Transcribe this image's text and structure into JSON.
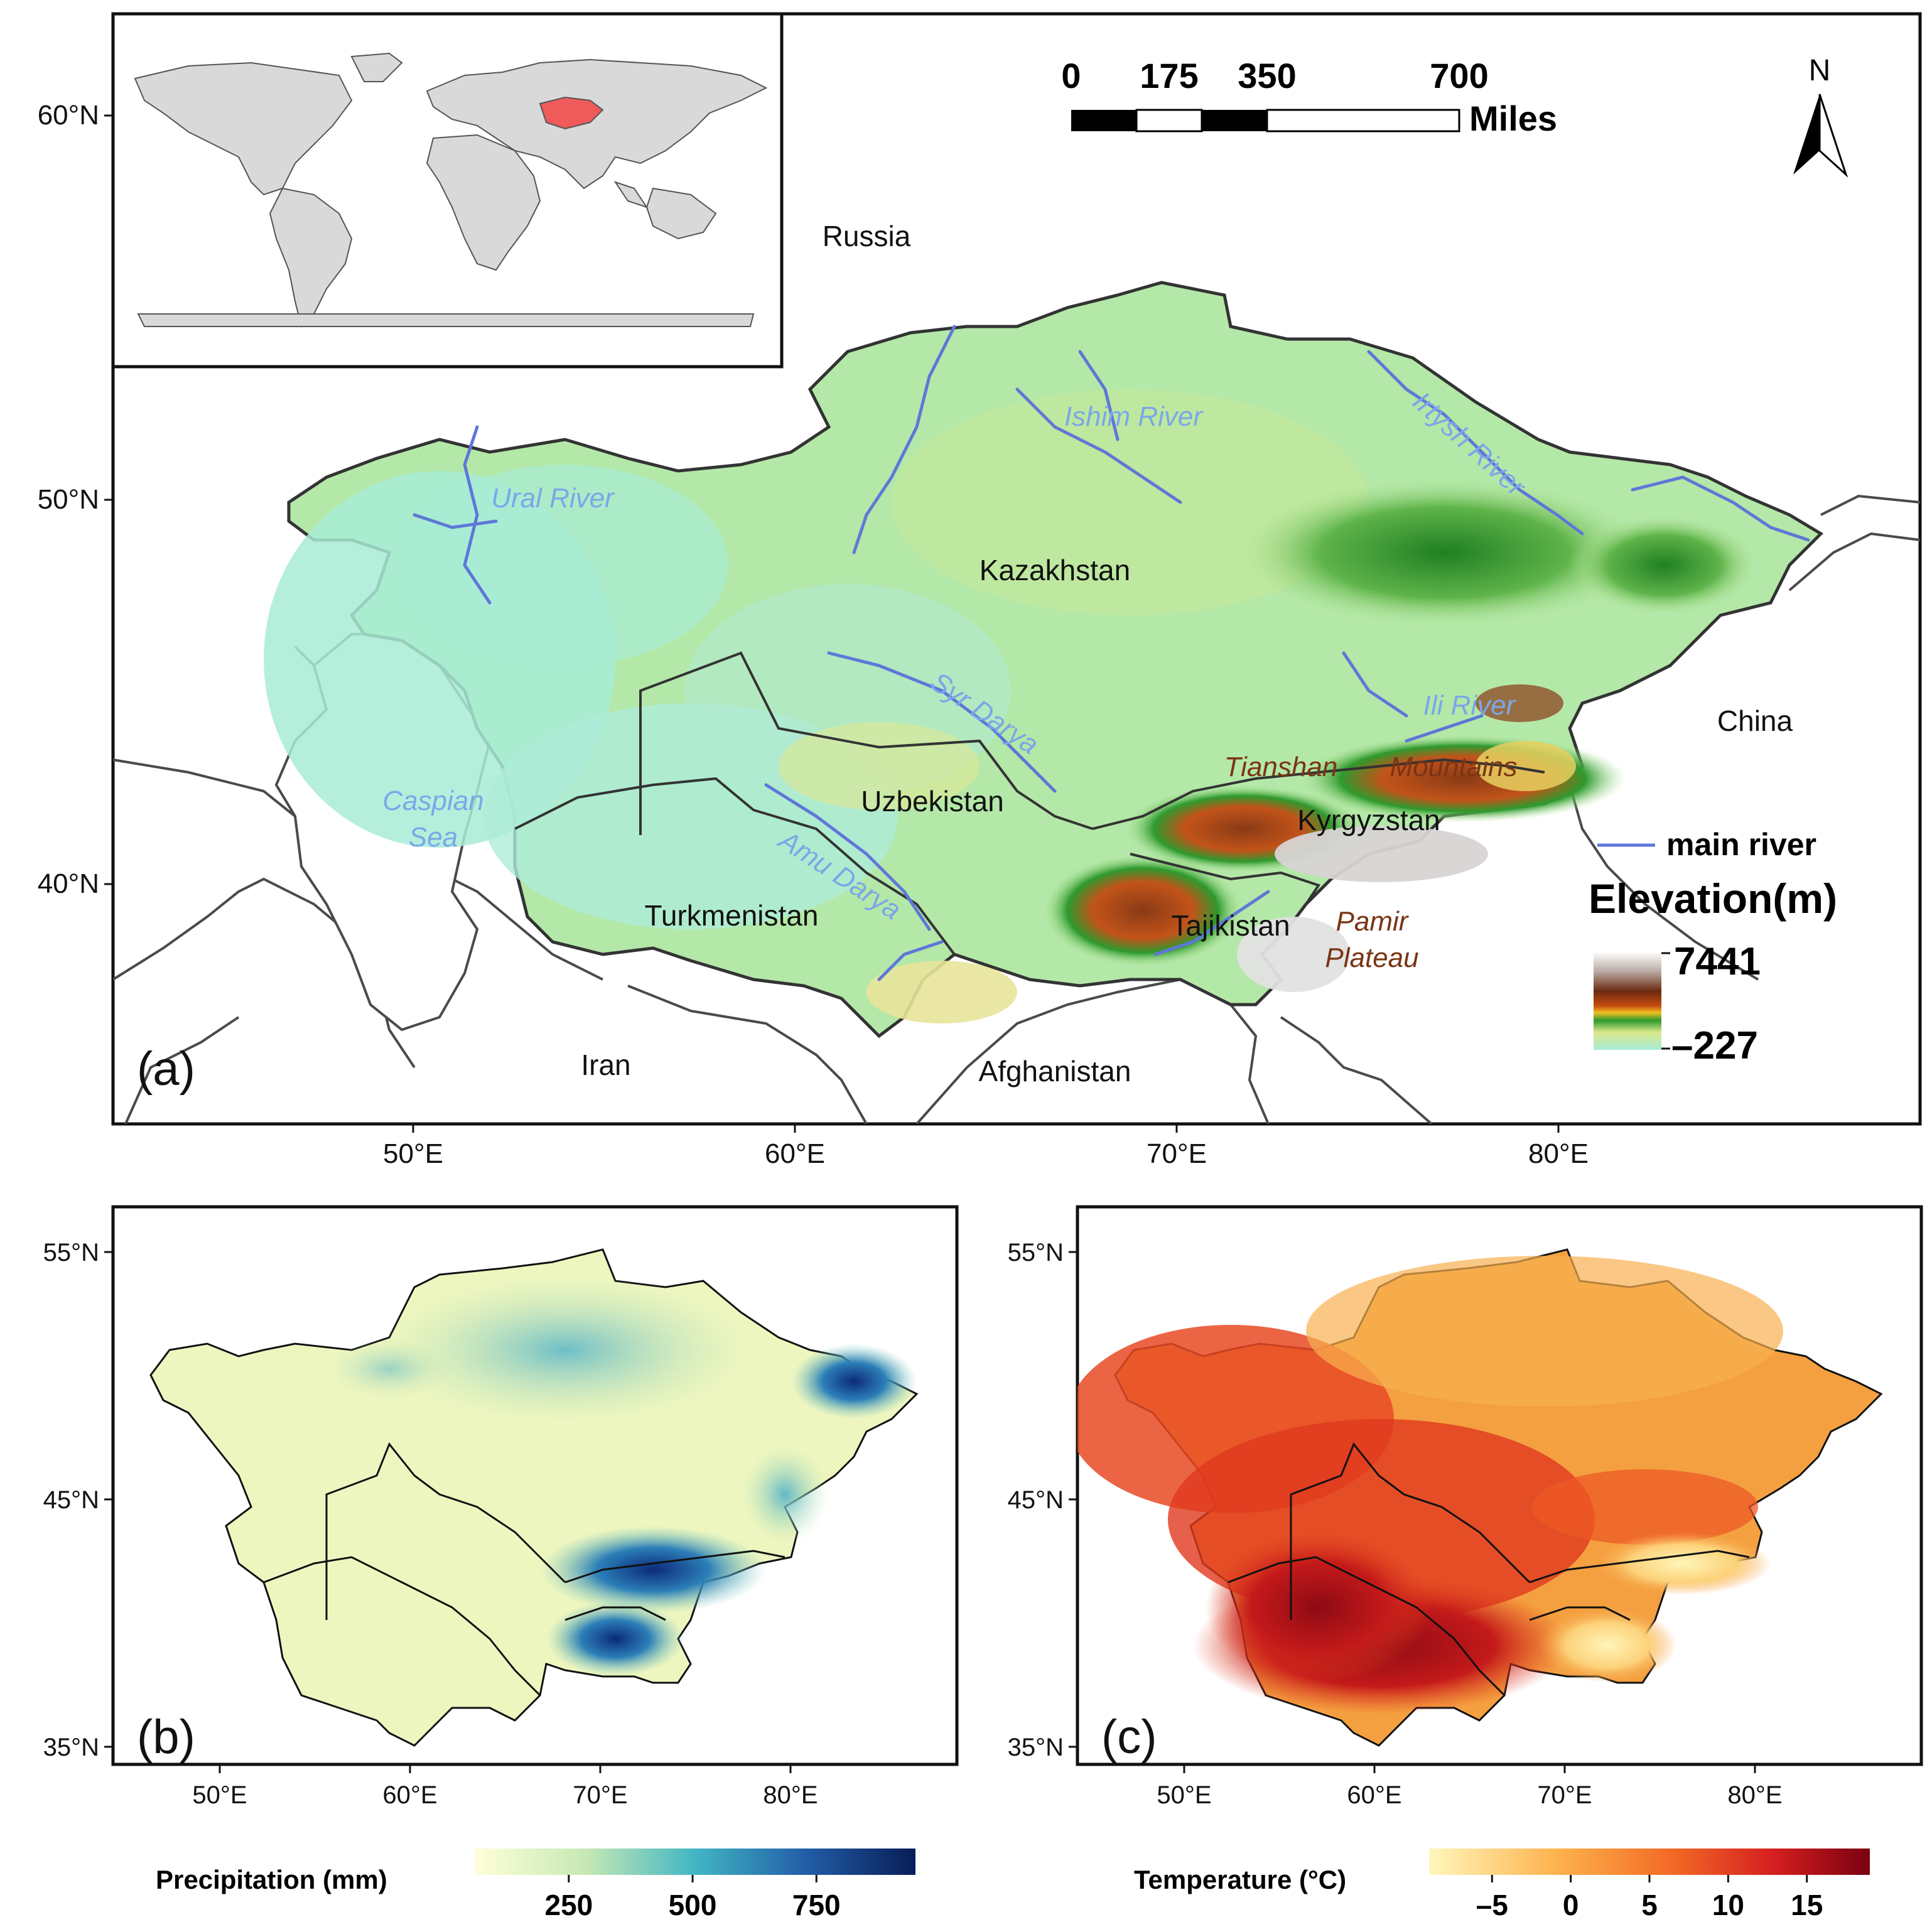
{
  "panel_a": {
    "label": "(a)",
    "lat_ticks": [
      {
        "text": "60°N",
        "lat": 60
      },
      {
        "text": "50°N",
        "lat": 50
      },
      {
        "text": "40°N",
        "lat": 40
      }
    ],
    "lon_ticks": [
      {
        "text": "50°E",
        "lon": 50
      },
      {
        "text": "60°E",
        "lon": 60
      },
      {
        "text": "70°E",
        "lon": 70
      },
      {
        "text": "80°E",
        "lon": 80
      }
    ],
    "scale_bar": {
      "ticks": [
        "0",
        "175",
        "350",
        "700"
      ],
      "unit": "Miles"
    },
    "north_arrow": "N",
    "countries": [
      "Russia",
      "Kazakhstan",
      "Uzbekistan",
      "Turkmenistan",
      "Kyrgyzstan",
      "Tajikistan",
      "China",
      "Iran",
      "Afghanistan"
    ],
    "rivers": [
      "Ishim River",
      "Irtysh River",
      "Ural River",
      "Syr Darya",
      "Ili River",
      "Amu Darya"
    ],
    "water": [
      "Caspian",
      "Sea"
    ],
    "mountains": [
      "Tianshan",
      "Mountains",
      "Pamir",
      "Plateau"
    ],
    "legend": {
      "river": "main river",
      "title": "Elevation(m)",
      "max": "7441",
      "min": "–227"
    },
    "colors": {
      "lowland": "#a8e8d4",
      "plain": "#b6e69a",
      "hill": "#e8e49a",
      "forest": "#2e9a2e",
      "mountain": "#8a3a16",
      "peak": "#e6e6e6",
      "river": "#5f77d8",
      "river_label": "#7ba7e8",
      "mountain_label": "#7a3414"
    }
  },
  "panel_b": {
    "label": "(b)",
    "lat_ticks": [
      {
        "text": "55°N",
        "lat": 55
      },
      {
        "text": "45°N",
        "lat": 45
      },
      {
        "text": "35°N",
        "lat": 35
      }
    ],
    "lon_ticks": [
      {
        "text": "50°E",
        "lon": 50
      },
      {
        "text": "60°E",
        "lon": 60
      },
      {
        "text": "70°E",
        "lon": 70
      },
      {
        "text": "80°E",
        "lon": 80
      }
    ],
    "legend": {
      "title": "Precipitation (mm)",
      "ticks": [
        "250",
        "500",
        "750"
      ],
      "tick_values": [
        250,
        500,
        750
      ],
      "range": [
        60,
        950
      ],
      "colors": [
        "#ffffd9",
        "#c7e9b4",
        "#41b6c4",
        "#225ea8",
        "#081d58"
      ]
    }
  },
  "panel_c": {
    "label": "(c)",
    "lat_ticks": [
      {
        "text": "55°N",
        "lat": 55
      },
      {
        "text": "45°N",
        "lat": 45
      },
      {
        "text": "35°N",
        "lat": 35
      }
    ],
    "lon_ticks": [
      {
        "text": "50°E",
        "lon": 50
      },
      {
        "text": "60°E",
        "lon": 60
      },
      {
        "text": "70°E",
        "lon": 70
      },
      {
        "text": "80°E",
        "lon": 80
      }
    ],
    "legend": {
      "title": "Temperature (°C)",
      "ticks": [
        "–5",
        "0",
        "5",
        "10",
        "15"
      ],
      "tick_values": [
        -5,
        0,
        5,
        10,
        15
      ],
      "range": [
        -9,
        19
      ],
      "colors": [
        "#fff7bc",
        "#fdb04b",
        "#f26a25",
        "#d61f1f",
        "#7a0010"
      ]
    }
  }
}
